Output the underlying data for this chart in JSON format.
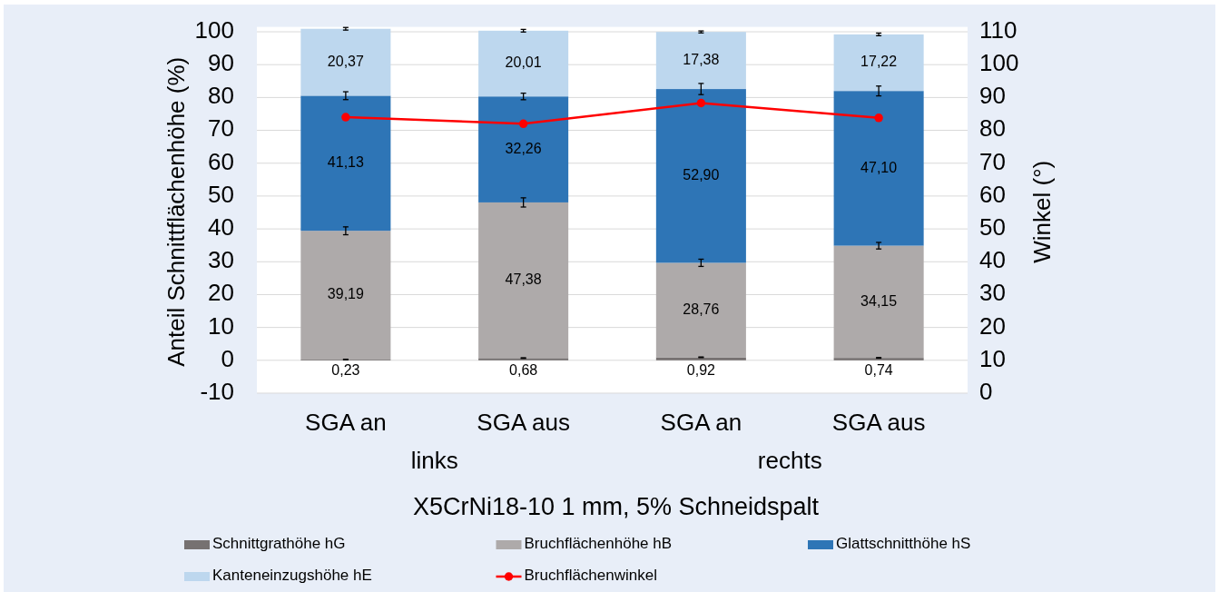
{
  "chart_data": {
    "type": "bar",
    "stacked": true,
    "categories": [
      "SGA an",
      "SGA aus",
      "SGA an",
      "SGA aus"
    ],
    "xlabel": "X5CrNi18-10 1 mm, 5% Schneidspalt",
    "ylabel": "Anteil Schnittflächenhöhe (%)",
    "y2label": "Winkel (°)",
    "annotations": [
      "links",
      "rechts"
    ],
    "ylim": [
      -10,
      101.5
    ],
    "yticks": [
      -10,
      0,
      10,
      20,
      30,
      40,
      50,
      60,
      70,
      80,
      90,
      100
    ],
    "y2lim": [
      0,
      111.5
    ],
    "y2ticks": [
      0,
      10,
      20,
      30,
      40,
      50,
      60,
      70,
      80,
      90,
      100,
      110
    ],
    "grid": "y",
    "legend": "bottom",
    "marker": "circle",
    "series": [
      {
        "name": "Schnittgrathöhe hG",
        "color": "#767171",
        "values": [
          0.23,
          0.68,
          0.92,
          0.74
        ],
        "value_labels": [
          "0,23",
          "0,68",
          "0,92",
          "0,74"
        ],
        "errors": [
          0.1,
          0.1,
          0.1,
          0.1
        ]
      },
      {
        "name": "Bruchflächenhöhe hB",
        "color": "#aeaaaa",
        "values": [
          39.19,
          47.38,
          28.76,
          34.15
        ],
        "value_labels": [
          "39,19",
          "47,38",
          "28,76",
          "34,15"
        ],
        "errors": [
          1.2,
          1.4,
          1.1,
          1.0
        ]
      },
      {
        "name": "Glattschnitthöhe hS",
        "color": "#2e75b6",
        "values": [
          41.13,
          32.26,
          52.9,
          47.1
        ],
        "value_labels": [
          "41,13",
          "32,26",
          "52,90",
          "47,10"
        ],
        "errors": [
          1.2,
          1.0,
          1.7,
          1.5
        ]
      },
      {
        "name": "Kanteneinzugshöhe hE",
        "color": "#bdd7ee",
        "values": [
          20.37,
          20.01,
          17.38,
          17.22
        ],
        "value_labels": [
          "20,37",
          "20,01",
          "17,38",
          "17,22"
        ],
        "errors": [
          0.4,
          0.4,
          0.3,
          0.4
        ]
      },
      {
        "name": "Bruchflächenwinkel",
        "type": "line",
        "axis": "y2",
        "color": "#ff0000",
        "values": [
          84.0,
          82.0,
          88.3,
          83.8
        ]
      }
    ]
  }
}
